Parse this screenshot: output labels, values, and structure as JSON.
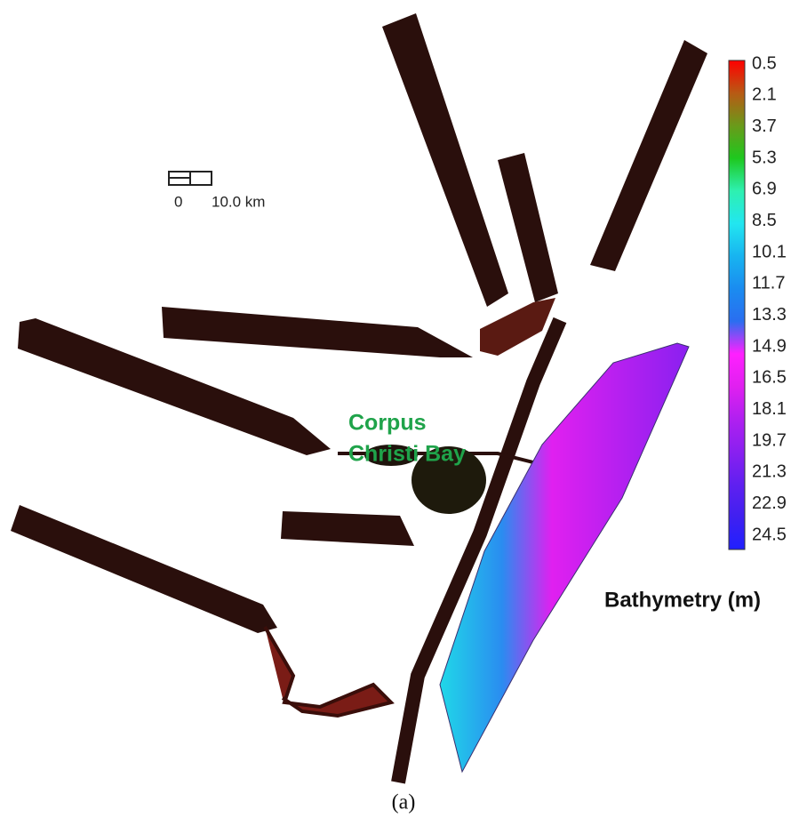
{
  "scale_bar": {
    "start": "0",
    "end": "10.0 km"
  },
  "map_label": {
    "line1": "Corpus",
    "line2": "Christi Bay"
  },
  "colorbar": {
    "title": "Bathymetry (m)",
    "ticks": [
      0.5,
      2.1,
      3.7,
      5.3,
      6.9,
      8.5,
      10.1,
      11.7,
      13.3,
      14.9,
      16.5,
      18.1,
      19.7,
      21.3,
      22.9,
      24.5
    ],
    "colors": [
      "#ff0000",
      "#b85a14",
      "#6a9a1a",
      "#1ec81e",
      "#2ef0b0",
      "#22e6f0",
      "#18b4f0",
      "#1a8cf0",
      "#2a6ef0",
      "#ff20ff",
      "#e020f0",
      "#b020f0",
      "#8a20f0",
      "#6020f0",
      "#4020f0",
      "#2020ff"
    ]
  },
  "caption": "(a)"
}
